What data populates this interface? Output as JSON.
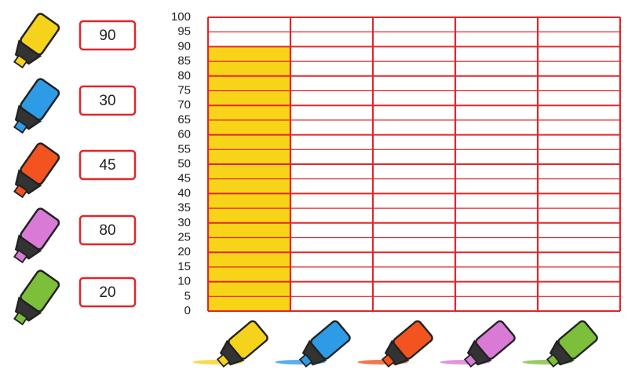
{
  "chart_data": {
    "type": "bar",
    "categories": [
      null,
      null,
      null,
      null,
      null
    ],
    "values": [
      90,
      null,
      null,
      null,
      null
    ],
    "colors": [
      "#f5d21c",
      "#2e9be6",
      "#f2531f",
      "#d97ad6",
      "#7cbf3a"
    ],
    "bar_color": "#f7d417",
    "ylim": [
      0,
      100
    ],
    "yticks": [
      0,
      5,
      10,
      15,
      20,
      25,
      30,
      35,
      40,
      45,
      50,
      55,
      60,
      65,
      70,
      75,
      80,
      85,
      90,
      95,
      100
    ],
    "grid": true
  },
  "answer_boxes": {
    "values": [
      90,
      30,
      45,
      80,
      20
    ]
  }
}
